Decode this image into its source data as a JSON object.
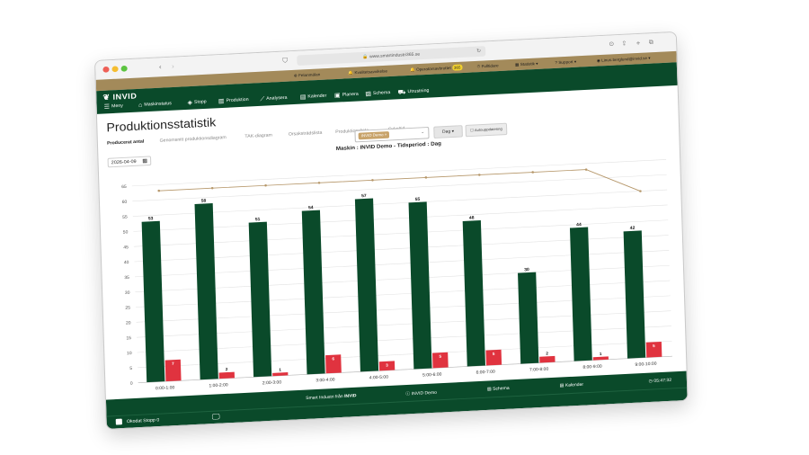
{
  "browser": {
    "url": "www.smartindustri365.se"
  },
  "topbar": {
    "items": [
      {
        "label": "Felanmälan",
        "icon": "plus-circle-icon"
      },
      {
        "label": "Kvalitetsavvikelse",
        "icon": "bell-icon"
      },
      {
        "label": "Operatörsavbrottet",
        "icon": "bell-icon",
        "badge": "365"
      },
      {
        "label": "Fulltidare",
        "icon": "clock-icon"
      },
      {
        "label": "Statistik ▾",
        "icon": "chart-icon"
      },
      {
        "label": "Support ▾",
        "icon": "question-icon"
      },
      {
        "label": "Linus.berglund@invid.se ▾",
        "icon": "user-icon"
      }
    ]
  },
  "app": {
    "logo": "INVID",
    "nav": [
      {
        "label": "Meny",
        "icon": "hamburger-icon"
      },
      {
        "label": "Maskinstatus",
        "icon": "home-icon"
      },
      {
        "label": "Stopp",
        "icon": "tag-icon"
      },
      {
        "label": "Produktion",
        "icon": "chart-icon"
      },
      {
        "label": "Analysera",
        "icon": "line-chart-icon"
      },
      {
        "label": "Kalender",
        "icon": "calendar-icon"
      },
      {
        "label": "Planera",
        "icon": "clipboard-icon"
      },
      {
        "label": "Schema",
        "icon": "calendar-check-icon"
      },
      {
        "label": "Utrustning",
        "icon": "truck-icon"
      }
    ]
  },
  "page": {
    "title": "Produktionsstatistik",
    "tabs": [
      {
        "label": "Producerat antal",
        "active": true
      },
      {
        "label": "Genomsnitt produktionsdiagram",
        "active": false
      },
      {
        "label": "TAK-diagram",
        "active": false
      },
      {
        "label": "Orsaksträdslista",
        "active": false
      },
      {
        "label": "Produktionslista",
        "active": false
      },
      {
        "label": "Cykeltid",
        "active": false
      }
    ],
    "date": "2026-04-09",
    "machine_chip": "INVID Demo ×",
    "period_select": "Dag ▾",
    "auto_update": "Autouppdatering"
  },
  "chart_data": {
    "type": "bar",
    "title": "Maskin : INVID Demo - Tidsperiod : Dag",
    "categories": [
      "0:00-1:00",
      "1:00-2:00",
      "2:00-3:00",
      "3:00-4:00",
      "4:00-5:00",
      "5:00-6:00",
      "6:00-7:00",
      "7:00-8:00",
      "8:00-9:00",
      "9:00-10:00"
    ],
    "ylim": [
      0,
      65
    ],
    "yticks": [
      0,
      5,
      10,
      15,
      20,
      25,
      30,
      35,
      40,
      45,
      50,
      55,
      60,
      65
    ],
    "grid": true,
    "series": [
      {
        "values": [
          53,
          58,
          51,
          54,
          57,
          55,
          48,
          30,
          44,
          42
        ],
        "color": "#0a4a2a",
        "type": "bar"
      },
      {
        "values": [
          7,
          2,
          1,
          6,
          3,
          5,
          5,
          2,
          1,
          5
        ],
        "color": "#e0333f",
        "type": "bar"
      },
      {
        "values": [
          63,
          63,
          63,
          63,
          63,
          63,
          63,
          63,
          63,
          55
        ],
        "color": "#b6976a",
        "type": "line"
      }
    ]
  },
  "footer": {
    "items": [
      {
        "label": "Smart Industri från",
        "logo": "INVID"
      },
      {
        "label": "INVID Demo",
        "icon": "info-icon"
      },
      {
        "label": "Schema",
        "icon": "calendar-check-icon"
      },
      {
        "label": "Kalender",
        "icon": "calendar-icon"
      },
      {
        "label": "05:47:32",
        "icon": "clock-icon"
      }
    ],
    "unknown_stop": "Okodat Stopp 0"
  }
}
